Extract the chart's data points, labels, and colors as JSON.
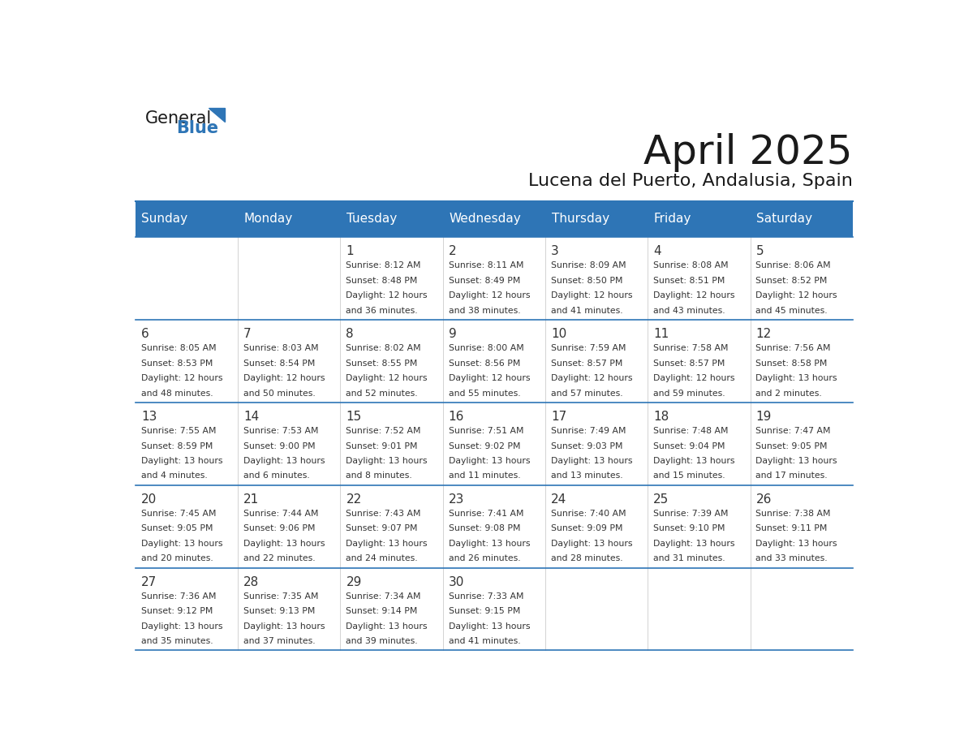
{
  "title": "April 2025",
  "subtitle": "Lucena del Puerto, Andalusia, Spain",
  "header_bg": "#2E75B6",
  "header_text_color": "#FFFFFF",
  "day_names": [
    "Sunday",
    "Monday",
    "Tuesday",
    "Wednesday",
    "Thursday",
    "Friday",
    "Saturday"
  ],
  "days": [
    {
      "day": 1,
      "col": 2,
      "row": 0,
      "sunrise": "8:12 AM",
      "sunset": "8:48 PM",
      "daylight": "12 hours and 36 minutes."
    },
    {
      "day": 2,
      "col": 3,
      "row": 0,
      "sunrise": "8:11 AM",
      "sunset": "8:49 PM",
      "daylight": "12 hours and 38 minutes."
    },
    {
      "day": 3,
      "col": 4,
      "row": 0,
      "sunrise": "8:09 AM",
      "sunset": "8:50 PM",
      "daylight": "12 hours and 41 minutes."
    },
    {
      "day": 4,
      "col": 5,
      "row": 0,
      "sunrise": "8:08 AM",
      "sunset": "8:51 PM",
      "daylight": "12 hours and 43 minutes."
    },
    {
      "day": 5,
      "col": 6,
      "row": 0,
      "sunrise": "8:06 AM",
      "sunset": "8:52 PM",
      "daylight": "12 hours and 45 minutes."
    },
    {
      "day": 6,
      "col": 0,
      "row": 1,
      "sunrise": "8:05 AM",
      "sunset": "8:53 PM",
      "daylight": "12 hours and 48 minutes."
    },
    {
      "day": 7,
      "col": 1,
      "row": 1,
      "sunrise": "8:03 AM",
      "sunset": "8:54 PM",
      "daylight": "12 hours and 50 minutes."
    },
    {
      "day": 8,
      "col": 2,
      "row": 1,
      "sunrise": "8:02 AM",
      "sunset": "8:55 PM",
      "daylight": "12 hours and 52 minutes."
    },
    {
      "day": 9,
      "col": 3,
      "row": 1,
      "sunrise": "8:00 AM",
      "sunset": "8:56 PM",
      "daylight": "12 hours and 55 minutes."
    },
    {
      "day": 10,
      "col": 4,
      "row": 1,
      "sunrise": "7:59 AM",
      "sunset": "8:57 PM",
      "daylight": "12 hours and 57 minutes."
    },
    {
      "day": 11,
      "col": 5,
      "row": 1,
      "sunrise": "7:58 AM",
      "sunset": "8:57 PM",
      "daylight": "12 hours and 59 minutes."
    },
    {
      "day": 12,
      "col": 6,
      "row": 1,
      "sunrise": "7:56 AM",
      "sunset": "8:58 PM",
      "daylight": "13 hours and 2 minutes."
    },
    {
      "day": 13,
      "col": 0,
      "row": 2,
      "sunrise": "7:55 AM",
      "sunset": "8:59 PM",
      "daylight": "13 hours and 4 minutes."
    },
    {
      "day": 14,
      "col": 1,
      "row": 2,
      "sunrise": "7:53 AM",
      "sunset": "9:00 PM",
      "daylight": "13 hours and 6 minutes."
    },
    {
      "day": 15,
      "col": 2,
      "row": 2,
      "sunrise": "7:52 AM",
      "sunset": "9:01 PM",
      "daylight": "13 hours and 8 minutes."
    },
    {
      "day": 16,
      "col": 3,
      "row": 2,
      "sunrise": "7:51 AM",
      "sunset": "9:02 PM",
      "daylight": "13 hours and 11 minutes."
    },
    {
      "day": 17,
      "col": 4,
      "row": 2,
      "sunrise": "7:49 AM",
      "sunset": "9:03 PM",
      "daylight": "13 hours and 13 minutes."
    },
    {
      "day": 18,
      "col": 5,
      "row": 2,
      "sunrise": "7:48 AM",
      "sunset": "9:04 PM",
      "daylight": "13 hours and 15 minutes."
    },
    {
      "day": 19,
      "col": 6,
      "row": 2,
      "sunrise": "7:47 AM",
      "sunset": "9:05 PM",
      "daylight": "13 hours and 17 minutes."
    },
    {
      "day": 20,
      "col": 0,
      "row": 3,
      "sunrise": "7:45 AM",
      "sunset": "9:05 PM",
      "daylight": "13 hours and 20 minutes."
    },
    {
      "day": 21,
      "col": 1,
      "row": 3,
      "sunrise": "7:44 AM",
      "sunset": "9:06 PM",
      "daylight": "13 hours and 22 minutes."
    },
    {
      "day": 22,
      "col": 2,
      "row": 3,
      "sunrise": "7:43 AM",
      "sunset": "9:07 PM",
      "daylight": "13 hours and 24 minutes."
    },
    {
      "day": 23,
      "col": 3,
      "row": 3,
      "sunrise": "7:41 AM",
      "sunset": "9:08 PM",
      "daylight": "13 hours and 26 minutes."
    },
    {
      "day": 24,
      "col": 4,
      "row": 3,
      "sunrise": "7:40 AM",
      "sunset": "9:09 PM",
      "daylight": "13 hours and 28 minutes."
    },
    {
      "day": 25,
      "col": 5,
      "row": 3,
      "sunrise": "7:39 AM",
      "sunset": "9:10 PM",
      "daylight": "13 hours and 31 minutes."
    },
    {
      "day": 26,
      "col": 6,
      "row": 3,
      "sunrise": "7:38 AM",
      "sunset": "9:11 PM",
      "daylight": "13 hours and 33 minutes."
    },
    {
      "day": 27,
      "col": 0,
      "row": 4,
      "sunrise": "7:36 AM",
      "sunset": "9:12 PM",
      "daylight": "13 hours and 35 minutes."
    },
    {
      "day": 28,
      "col": 1,
      "row": 4,
      "sunrise": "7:35 AM",
      "sunset": "9:13 PM",
      "daylight": "13 hours and 37 minutes."
    },
    {
      "day": 29,
      "col": 2,
      "row": 4,
      "sunrise": "7:34 AM",
      "sunset": "9:14 PM",
      "daylight": "13 hours and 39 minutes."
    },
    {
      "day": 30,
      "col": 3,
      "row": 4,
      "sunrise": "7:33 AM",
      "sunset": "9:15 PM",
      "daylight": "13 hours and 41 minutes."
    }
  ],
  "logo_general_color": "#1a1a1a",
  "logo_blue_color": "#2E75B6",
  "line_color": "#2E75B6",
  "row_line_color": "#2E75B6",
  "text_color": "#333333",
  "title_fontsize": 36,
  "subtitle_fontsize": 16,
  "header_fontsize": 11,
  "day_num_fontsize": 11,
  "cell_fontsize": 7.8
}
